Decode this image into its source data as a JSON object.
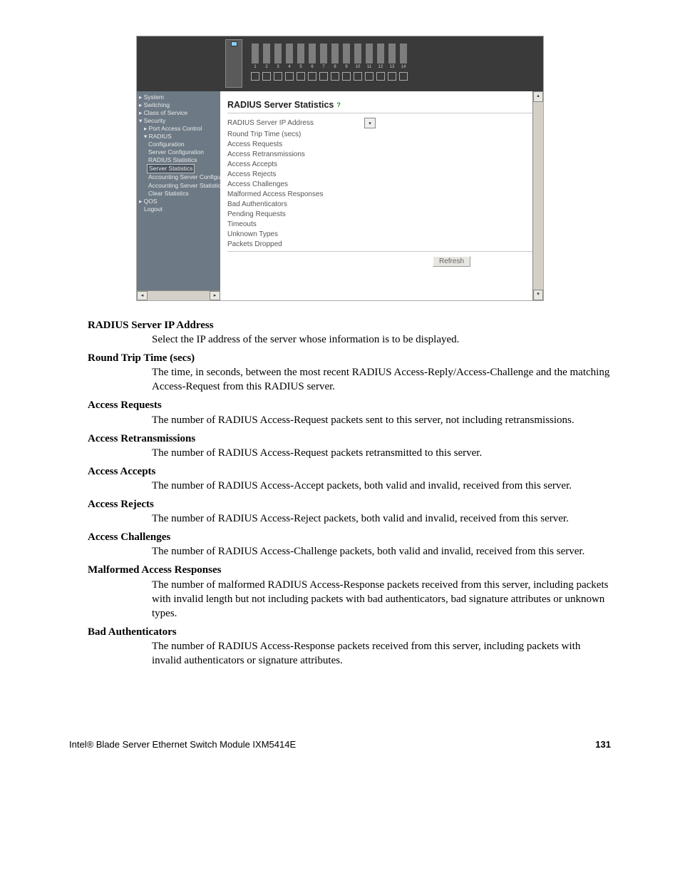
{
  "screenshot": {
    "port_numbers": [
      "1",
      "2",
      "3",
      "4",
      "5",
      "6",
      "7",
      "8",
      "9",
      "10",
      "11",
      "12",
      "13",
      "14"
    ],
    "nav": [
      {
        "cls": "n1",
        "text": "▸ System"
      },
      {
        "cls": "n1",
        "text": "▸ Switching"
      },
      {
        "cls": "n1",
        "text": "▸ Class of Service"
      },
      {
        "cls": "n1",
        "text": "▾ Security"
      },
      {
        "cls": "n2",
        "text": "▸ Port Access Control"
      },
      {
        "cls": "n2",
        "text": "▾ RADIUS"
      },
      {
        "cls": "n3",
        "text": "Configuration"
      },
      {
        "cls": "n3",
        "text": "Server Configuration"
      },
      {
        "cls": "n3",
        "text": "RADIUS Statistics"
      },
      {
        "cls": "sel",
        "text": "Server Statistics"
      },
      {
        "cls": "n3",
        "text": "Accounting Server Configuratio"
      },
      {
        "cls": "n3",
        "text": "Accounting Server Statistics"
      },
      {
        "cls": "n3",
        "text": "Clear Statistics"
      },
      {
        "cls": "n1",
        "text": "▸ QOS"
      },
      {
        "cls": "n2",
        "text": "Logout"
      }
    ],
    "title": "RADIUS Server Statistics",
    "fields": [
      {
        "label": "RADIUS Server IP Address",
        "dropdown": true
      },
      {
        "label": "Round Trip Time (secs)"
      },
      {
        "label": "Access Requests"
      },
      {
        "label": "Access Retransmissions"
      },
      {
        "label": "Access Accepts"
      },
      {
        "label": "Access Rejects"
      },
      {
        "label": "Access Challenges"
      },
      {
        "label": "Malformed Access Responses"
      },
      {
        "label": "Bad Authenticators"
      },
      {
        "label": "Pending Requests"
      },
      {
        "label": "Timeouts"
      },
      {
        "label": "Unknown Types"
      },
      {
        "label": "Packets Dropped"
      }
    ],
    "refresh_label": "Refresh"
  },
  "definitions": [
    {
      "term": "RADIUS Server IP Address",
      "desc": "Select the IP address of the server whose information is to be displayed."
    },
    {
      "term": "Round Trip Time (secs)",
      "desc": "The time, in seconds, between the most recent RADIUS Access-Reply/Access-Challenge and the matching Access-Request from this RADIUS server."
    },
    {
      "term": "Access Requests",
      "desc": "The number of RADIUS Access-Request packets sent to this server, not including retransmissions."
    },
    {
      "term": "Access Retransmissions",
      "desc": "The number of RADIUS Access-Request packets retransmitted to this server."
    },
    {
      "term": "Access Accepts",
      "desc": "The number of RADIUS Access-Accept packets, both valid and invalid, received from this server."
    },
    {
      "term": "Access Rejects",
      "desc": "The number of RADIUS Access-Reject packets, both valid and invalid, received from this server."
    },
    {
      "term": "Access Challenges",
      "desc": "The number of RADIUS Access-Challenge packets, both valid and invalid, received from this server."
    },
    {
      "term": "Malformed Access Responses",
      "desc": "The number of malformed RADIUS Access-Response packets received from this server, including packets with invalid length but not including packets with bad authenticators, bad signature attributes or unknown types."
    },
    {
      "term": "Bad Authenticators",
      "desc": "The number of RADIUS Access-Response packets received from this server, including packets with invalid authenticators or signature attributes."
    }
  ],
  "footer": {
    "product": "Intel® Blade Server Ethernet Switch Module IXM5414E",
    "page": "131"
  }
}
